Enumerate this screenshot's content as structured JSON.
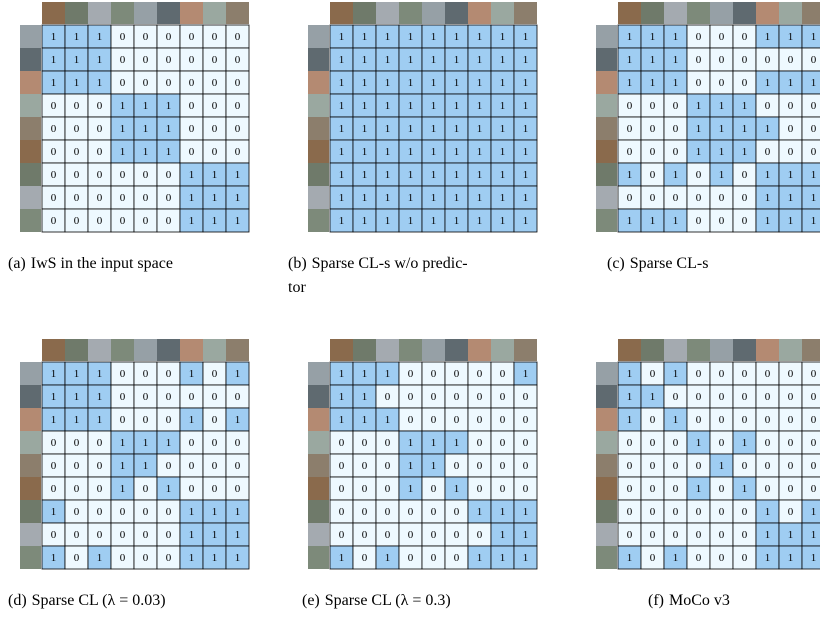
{
  "panels": [
    {
      "label": "(a)",
      "caption_lines": [
        "IwS in the input space"
      ],
      "matrix": [
        [
          1,
          1,
          1,
          0,
          0,
          0,
          0,
          0,
          0
        ],
        [
          1,
          1,
          1,
          0,
          0,
          0,
          0,
          0,
          0
        ],
        [
          1,
          1,
          1,
          0,
          0,
          0,
          0,
          0,
          0
        ],
        [
          0,
          0,
          0,
          1,
          1,
          1,
          0,
          0,
          0
        ],
        [
          0,
          0,
          0,
          1,
          1,
          1,
          0,
          0,
          0
        ],
        [
          0,
          0,
          0,
          1,
          1,
          1,
          0,
          0,
          0
        ],
        [
          0,
          0,
          0,
          0,
          0,
          0,
          1,
          1,
          1
        ],
        [
          0,
          0,
          0,
          0,
          0,
          0,
          1,
          1,
          1
        ],
        [
          0,
          0,
          0,
          0,
          0,
          0,
          1,
          1,
          1
        ]
      ]
    },
    {
      "label": "(b)",
      "caption_lines": [
        "Sparse CL-s w/o predic-",
        "tor"
      ],
      "matrix": [
        [
          1,
          1,
          1,
          1,
          1,
          1,
          1,
          1,
          1
        ],
        [
          1,
          1,
          1,
          1,
          1,
          1,
          1,
          1,
          1
        ],
        [
          1,
          1,
          1,
          1,
          1,
          1,
          1,
          1,
          1
        ],
        [
          1,
          1,
          1,
          1,
          1,
          1,
          1,
          1,
          1
        ],
        [
          1,
          1,
          1,
          1,
          1,
          1,
          1,
          1,
          1
        ],
        [
          1,
          1,
          1,
          1,
          1,
          1,
          1,
          1,
          1
        ],
        [
          1,
          1,
          1,
          1,
          1,
          1,
          1,
          1,
          1
        ],
        [
          1,
          1,
          1,
          1,
          1,
          1,
          1,
          1,
          1
        ],
        [
          1,
          1,
          1,
          1,
          1,
          1,
          1,
          1,
          1
        ]
      ]
    },
    {
      "label": "(c)",
      "caption_lines": [
        "Sparse CL-s"
      ],
      "matrix": [
        [
          1,
          1,
          1,
          0,
          0,
          0,
          1,
          1,
          1
        ],
        [
          1,
          1,
          1,
          0,
          0,
          0,
          0,
          0,
          0
        ],
        [
          1,
          1,
          1,
          0,
          0,
          0,
          1,
          1,
          1
        ],
        [
          0,
          0,
          0,
          1,
          1,
          1,
          0,
          0,
          0
        ],
        [
          0,
          0,
          0,
          1,
          1,
          1,
          1,
          0,
          0
        ],
        [
          0,
          0,
          0,
          1,
          1,
          1,
          0,
          0,
          0
        ],
        [
          1,
          0,
          1,
          0,
          1,
          0,
          1,
          1,
          1
        ],
        [
          0,
          0,
          0,
          0,
          0,
          0,
          1,
          1,
          1
        ],
        [
          1,
          1,
          1,
          0,
          0,
          0,
          1,
          1,
          1
        ]
      ]
    },
    {
      "label": "(d)",
      "caption_lines": [
        "Sparse CL (λ = 0.03)"
      ],
      "matrix": [
        [
          1,
          1,
          1,
          0,
          0,
          0,
          1,
          0,
          1
        ],
        [
          1,
          1,
          1,
          0,
          0,
          0,
          0,
          0,
          0
        ],
        [
          1,
          1,
          1,
          0,
          0,
          0,
          1,
          0,
          1
        ],
        [
          0,
          0,
          0,
          1,
          1,
          1,
          0,
          0,
          0
        ],
        [
          0,
          0,
          0,
          1,
          1,
          0,
          0,
          0,
          0
        ],
        [
          0,
          0,
          0,
          1,
          0,
          1,
          0,
          0,
          0
        ],
        [
          1,
          0,
          0,
          0,
          0,
          0,
          1,
          1,
          1
        ],
        [
          0,
          0,
          0,
          0,
          0,
          0,
          1,
          1,
          1
        ],
        [
          1,
          0,
          1,
          0,
          0,
          0,
          1,
          1,
          1
        ]
      ]
    },
    {
      "label": "(e)",
      "caption_lines": [
        "Sparse CL (λ = 0.3)"
      ],
      "matrix": [
        [
          1,
          1,
          1,
          0,
          0,
          0,
          0,
          0,
          1
        ],
        [
          1,
          1,
          0,
          0,
          0,
          0,
          0,
          0,
          0
        ],
        [
          1,
          1,
          1,
          0,
          0,
          0,
          0,
          0,
          0
        ],
        [
          0,
          0,
          0,
          1,
          1,
          1,
          0,
          0,
          0
        ],
        [
          0,
          0,
          0,
          1,
          1,
          0,
          0,
          0,
          0
        ],
        [
          0,
          0,
          0,
          1,
          0,
          1,
          0,
          0,
          0
        ],
        [
          0,
          0,
          0,
          0,
          0,
          0,
          1,
          1,
          1
        ],
        [
          0,
          0,
          0,
          0,
          0,
          0,
          0,
          1,
          1
        ],
        [
          1,
          0,
          1,
          0,
          0,
          0,
          1,
          1,
          1
        ]
      ]
    },
    {
      "label": "(f)",
      "caption_lines": [
        "MoCo v3"
      ],
      "matrix": [
        [
          1,
          0,
          1,
          0,
          0,
          0,
          0,
          0,
          0
        ],
        [
          1,
          1,
          0,
          0,
          0,
          0,
          0,
          0,
          0
        ],
        [
          1,
          0,
          1,
          0,
          0,
          0,
          0,
          0,
          0
        ],
        [
          0,
          0,
          0,
          1,
          0,
          1,
          0,
          0,
          0
        ],
        [
          0,
          0,
          0,
          0,
          1,
          0,
          0,
          0,
          0
        ],
        [
          0,
          0,
          0,
          1,
          0,
          1,
          0,
          0,
          0
        ],
        [
          0,
          0,
          0,
          0,
          0,
          0,
          1,
          0,
          1
        ],
        [
          0,
          0,
          0,
          0,
          0,
          0,
          1,
          1,
          1
        ],
        [
          1,
          0,
          1,
          0,
          0,
          0,
          1,
          1,
          1
        ]
      ]
    }
  ]
}
